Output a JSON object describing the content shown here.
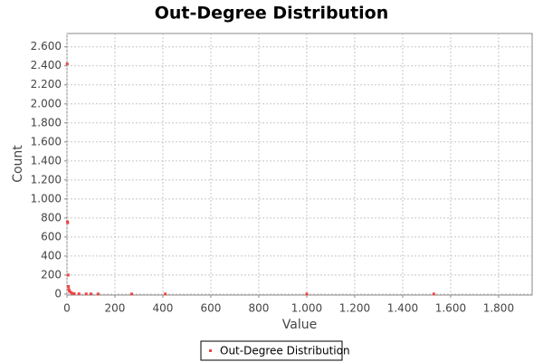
{
  "chart_data": {
    "type": "scatter",
    "title": "Out-Degree Distribution",
    "x_label": "Value",
    "y_label": "Count",
    "x": [
      1,
      2,
      3,
      5,
      6,
      8,
      10,
      15,
      20,
      30,
      50,
      80,
      100,
      130,
      270,
      410,
      1000,
      1530
    ],
    "series": [
      {
        "name": "Out-Degree Distribution",
        "color": "#ee4444",
        "values": [
          2420,
          760,
          750,
          200,
          80,
          50,
          30,
          20,
          10,
          5,
          3,
          2,
          2,
          1,
          1,
          1,
          1,
          1
        ]
      }
    ],
    "xlim": [
      0,
      1940
    ],
    "ylim": [
      -10,
      2740
    ],
    "xticks": [
      0,
      200,
      400,
      600,
      800,
      {
        "value": 1000,
        "label": "1.000"
      },
      {
        "value": 1200,
        "label": "1.200"
      },
      {
        "value": 1400,
        "label": "1.400"
      },
      {
        "value": 1600,
        "label": "1.600"
      },
      {
        "value": 1800,
        "label": "1.800"
      }
    ],
    "yticks": [
      0,
      200,
      400,
      600,
      800,
      {
        "value": 1000,
        "label": "1.000"
      },
      {
        "value": 1200,
        "label": "1.200"
      },
      {
        "value": 1400,
        "label": "1.400"
      },
      {
        "value": 1600,
        "label": "1.600"
      },
      {
        "value": 1800,
        "label": "1.800"
      },
      {
        "value": 2000,
        "label": "2.000"
      },
      {
        "value": 2200,
        "label": "2.200"
      },
      {
        "value": 2400,
        "label": "2.400"
      },
      {
        "value": 2600,
        "label": "2.600"
      }
    ],
    "grid": true,
    "legend": "bottom"
  }
}
